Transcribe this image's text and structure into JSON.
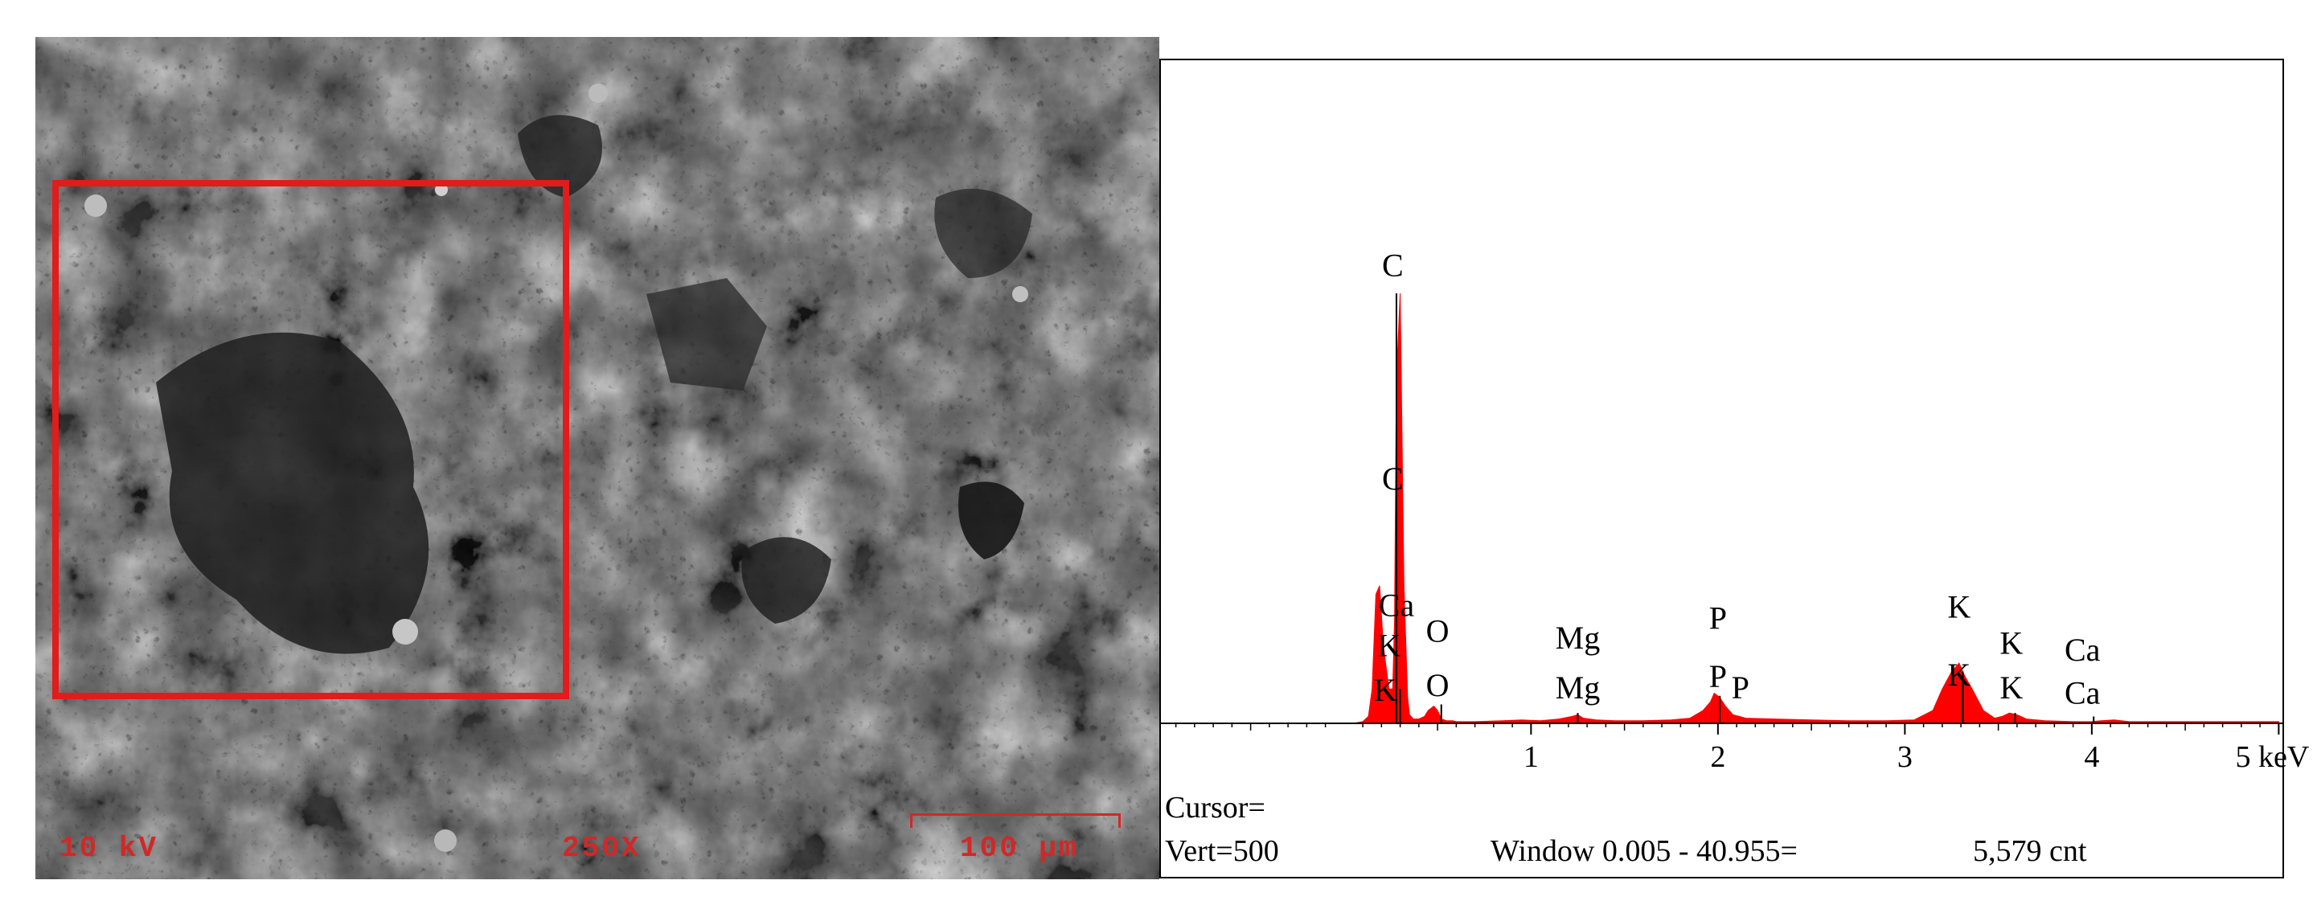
{
  "sem_image": {
    "accelerating_voltage": "10 kV",
    "magnification": "250X",
    "scale_bar": "100 µm",
    "label_color": "#d12828",
    "roi_color": "#e21b1b"
  },
  "eds_status": {
    "cursor": "Cursor=",
    "vert": "Vert=500",
    "window": "Window 0.005 - 40.955=",
    "count": "5,579 cnt"
  },
  "chart_data": {
    "type": "area",
    "xlabel": "",
    "ylabel": "",
    "x_unit": "keV",
    "xlim": [
      -0.98,
      5.02
    ],
    "ylim": [
      0,
      500
    ],
    "x_ticks": [
      1,
      2,
      3,
      4,
      5
    ],
    "x_tick_labels": [
      "1",
      "2",
      "3",
      "4",
      "5 keV"
    ],
    "fill_color": "#ff0000",
    "grid": false,
    "series": [
      {
        "x": [
          0.0,
          0.05,
          0.1,
          0.13,
          0.15,
          0.17,
          0.19,
          0.21,
          0.24,
          0.26,
          0.27,
          0.28,
          0.3,
          0.32,
          0.34,
          0.35,
          0.37,
          0.4,
          0.43,
          0.45,
          0.48,
          0.5,
          0.52,
          0.55,
          0.58,
          0.6,
          0.7,
          0.85,
          0.95,
          1.05,
          1.15,
          1.22,
          1.25,
          1.28,
          1.35,
          1.45,
          1.6,
          1.75,
          1.85,
          1.92,
          1.96,
          1.98,
          2.01,
          2.04,
          2.08,
          2.15,
          2.3,
          2.5,
          2.7,
          2.9,
          3.05,
          3.15,
          3.2,
          3.25,
          3.29,
          3.32,
          3.36,
          3.42,
          3.48,
          3.52,
          3.56,
          3.6,
          3.65,
          3.75,
          3.9,
          4.0,
          4.05,
          4.12,
          4.2,
          4.4,
          4.7,
          5.0
        ],
        "y": [
          0,
          0,
          2,
          8,
          40,
          150,
          160,
          90,
          40,
          40,
          120,
          400,
          500,
          160,
          30,
          10,
          5,
          5,
          8,
          15,
          20,
          15,
          5,
          3,
          3,
          2,
          2,
          3,
          4,
          3,
          5,
          8,
          10,
          6,
          4,
          3,
          3,
          4,
          6,
          15,
          25,
          35,
          30,
          20,
          10,
          6,
          5,
          4,
          3,
          3,
          4,
          15,
          40,
          60,
          70,
          55,
          40,
          15,
          6,
          8,
          12,
          10,
          5,
          3,
          2,
          2,
          3,
          4,
          2,
          2,
          2,
          2
        ]
      }
    ],
    "peak_labels": [
      {
        "text": "C",
        "x": 0.26,
        "y": 520
      },
      {
        "text": "C",
        "x": 0.26,
        "y": 272
      },
      {
        "text": "Ca",
        "x": 0.28,
        "y": 125
      },
      {
        "text": "K",
        "x": 0.24,
        "y": 78
      },
      {
        "text": "K",
        "x": 0.22,
        "y": 26
      },
      {
        "text": "O",
        "x": 0.5,
        "y": 95
      },
      {
        "text": "O",
        "x": 0.5,
        "y": 32
      },
      {
        "text": "Mg",
        "x": 1.25,
        "y": 87
      },
      {
        "text": "Mg",
        "x": 1.25,
        "y": 29
      },
      {
        "text": "P",
        "x": 2.0,
        "y": 110
      },
      {
        "text": "P",
        "x": 2.0,
        "y": 42
      },
      {
        "text": "P",
        "x": 2.12,
        "y": 29
      },
      {
        "text": "K",
        "x": 3.29,
        "y": 123
      },
      {
        "text": "K",
        "x": 3.29,
        "y": 44
      },
      {
        "text": "K",
        "x": 3.57,
        "y": 81
      },
      {
        "text": "K",
        "x": 3.57,
        "y": 29
      },
      {
        "text": "Ca",
        "x": 3.95,
        "y": 73
      },
      {
        "text": "Ca",
        "x": 3.95,
        "y": 23
      }
    ],
    "marker_lines": [
      {
        "x": 0.28,
        "y": 500
      },
      {
        "x": 0.3,
        "y": 40
      },
      {
        "x": 0.52,
        "y": 22
      },
      {
        "x": 1.25,
        "y": 12
      },
      {
        "x": 2.01,
        "y": 32
      },
      {
        "x": 3.31,
        "y": 60
      },
      {
        "x": 3.59,
        "y": 12
      },
      {
        "x": 4.01,
        "y": 8
      }
    ]
  }
}
